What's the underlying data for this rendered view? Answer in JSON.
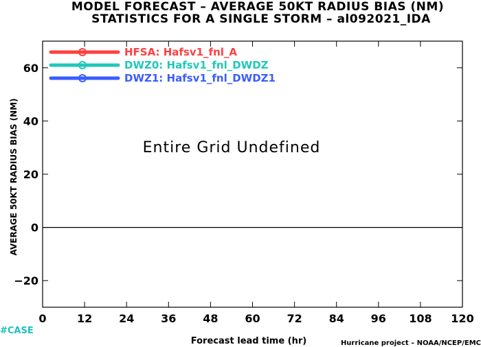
{
  "chart_data": {
    "type": "line",
    "title": "MODEL FORECAST – AVERAGE 50KT RADIUS BIAS (NM)",
    "subtitle": "STATISTICS FOR A SINGLE STORM – al092021_IDA",
    "xlabel": "Forecast lead time (hr)",
    "ylabel": "AVERAGE 50KT RADIUS BIAS (NM)",
    "xlim": [
      0,
      120
    ],
    "ylim": [
      -30,
      70
    ],
    "x_ticks": [
      0,
      12,
      24,
      36,
      48,
      60,
      72,
      84,
      96,
      108,
      120
    ],
    "y_ticks": [
      -20,
      0,
      20,
      40,
      60
    ],
    "y_tick_labels": [
      "−20",
      "0",
      "20",
      "40",
      "60"
    ],
    "reference_line_y": 0,
    "grid": false,
    "legend_position": "top-left",
    "series": [
      {
        "name": "HFSA: Hafsv1_fnl_A",
        "color": "#ff4040",
        "values": []
      },
      {
        "name": "DWZ0: Hafsv1_fnl_DWDZ",
        "color": "#20c8b8",
        "values": []
      },
      {
        "name": "DWZ1: Hafsv1_fnl_DWDZ1",
        "color": "#3a5cff",
        "values": []
      }
    ],
    "annotation": "Entire Grid Undefined",
    "case_label": "#CASE",
    "credit": "Hurricane project – NOAA/NCEP/EMC"
  }
}
